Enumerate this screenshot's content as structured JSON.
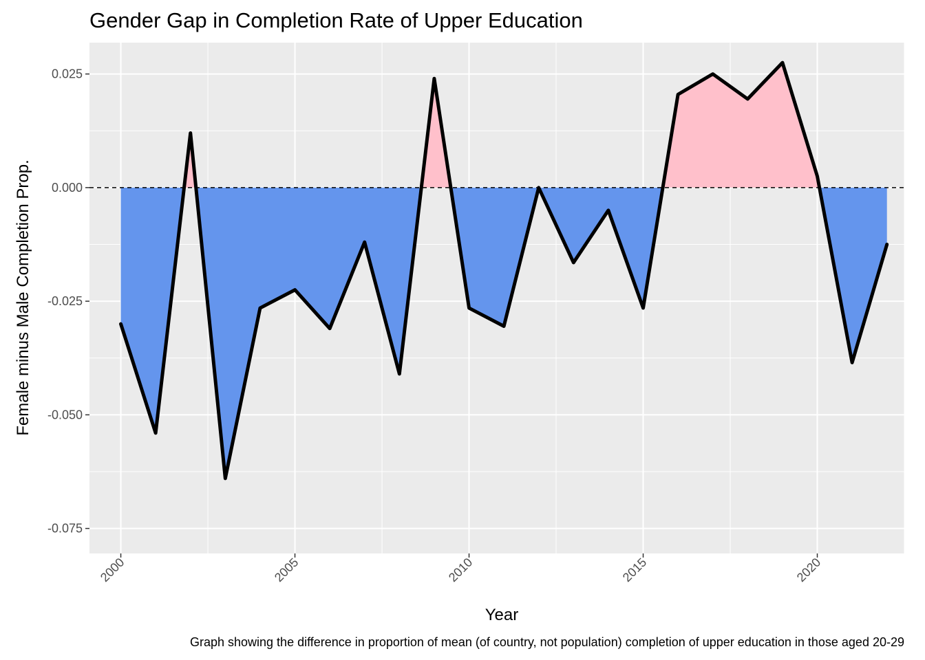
{
  "chart_data": {
    "type": "area",
    "title": "Gender Gap in Completion Rate of Upper Education",
    "xlabel": "Year",
    "ylabel": "Female minus Male Completion Prop.",
    "caption": "Graph showing the difference in proportion of mean (of country, not population) completion of upper education in those aged 20-29",
    "x": [
      2000,
      2001,
      2002,
      2003,
      2004,
      2005,
      2006,
      2007,
      2008,
      2009,
      2010,
      2011,
      2012,
      2013,
      2014,
      2015,
      2016,
      2017,
      2018,
      2019,
      2020,
      2021,
      2022
    ],
    "y": [
      -0.03,
      -0.054,
      0.012,
      -0.064,
      -0.0265,
      -0.0225,
      -0.031,
      -0.012,
      -0.041,
      0.024,
      -0.0265,
      -0.0305,
      0.0,
      -0.0165,
      -0.005,
      -0.0265,
      0.0205,
      0.025,
      0.0195,
      0.0275,
      0.0025,
      -0.0385,
      -0.0125
    ],
    "xlim": [
      1999.1,
      2022.5
    ],
    "ylim": [
      -0.0805,
      0.0319
    ],
    "x_ticks": [
      2000,
      2005,
      2010,
      2015,
      2020
    ],
    "x_tick_labels": [
      "2000",
      "2005",
      "2010",
      "2015",
      "2020"
    ],
    "y_ticks": [
      0.025,
      0.0,
      -0.025,
      -0.05,
      -0.075
    ],
    "y_tick_labels": [
      "0.025",
      "0.000",
      "-0.025",
      "-0.050",
      "-0.075"
    ],
    "reference_line": 0,
    "grid": true,
    "colors": {
      "panel": "#ebebeb",
      "grid": "#ffffff",
      "positive_fill": "#ffc0cb",
      "negative_fill": "#6495ed",
      "line": "#000000"
    }
  }
}
